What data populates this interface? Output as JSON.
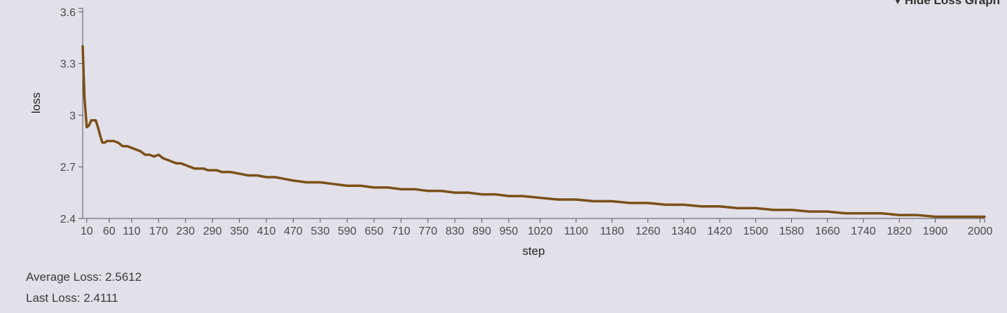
{
  "toggle": {
    "arrow": "▼",
    "label": "Hide Loss Graph"
  },
  "stats": {
    "average_label": "Average Loss: 2.5612",
    "last_label": "Last Loss: 2.4111"
  },
  "colors": {
    "line": "#7a5019",
    "axis": "#555555",
    "background": "#e2e0e9"
  },
  "chart_data": {
    "type": "line",
    "xlabel": "step",
    "ylabel": "loss",
    "xlim": [
      1,
      2010
    ],
    "ylim": [
      2.4,
      3.62
    ],
    "x_ticks": [
      10,
      60,
      110,
      170,
      230,
      290,
      350,
      410,
      470,
      530,
      590,
      650,
      710,
      770,
      830,
      890,
      950,
      1020,
      1100,
      1180,
      1260,
      1340,
      1420,
      1500,
      1580,
      1660,
      1740,
      1820,
      1900,
      2000
    ],
    "y_ticks": [
      2.4,
      2.7,
      3,
      3.3,
      3.6
    ],
    "y_tick_labels": [
      "2.4",
      "2.7",
      "3",
      "3.3",
      "3.6"
    ],
    "grid": false,
    "series": [
      {
        "x": [
          1,
          5,
          10,
          15,
          20,
          25,
          30,
          35,
          40,
          45,
          50,
          55,
          60,
          65,
          70,
          80,
          90,
          100,
          110,
          120,
          130,
          140,
          150,
          160,
          170,
          180,
          190,
          200,
          210,
          220,
          230,
          240,
          250,
          260,
          270,
          280,
          290,
          300,
          310,
          320,
          330,
          350,
          370,
          390,
          410,
          430,
          450,
          470,
          500,
          530,
          560,
          590,
          620,
          650,
          680,
          710,
          740,
          770,
          800,
          830,
          860,
          890,
          920,
          950,
          980,
          1020,
          1060,
          1100,
          1140,
          1180,
          1220,
          1260,
          1300,
          1340,
          1380,
          1420,
          1460,
          1500,
          1540,
          1580,
          1620,
          1660,
          1700,
          1740,
          1780,
          1820,
          1860,
          1900,
          1940,
          1980,
          2010
        ],
        "y": [
          3.4,
          3.1,
          2.93,
          2.94,
          2.97,
          2.97,
          2.97,
          2.93,
          2.88,
          2.84,
          2.84,
          2.85,
          2.85,
          2.85,
          2.85,
          2.84,
          2.82,
          2.82,
          2.81,
          2.8,
          2.79,
          2.77,
          2.77,
          2.76,
          2.77,
          2.75,
          2.74,
          2.73,
          2.72,
          2.72,
          2.71,
          2.7,
          2.69,
          2.69,
          2.69,
          2.68,
          2.68,
          2.68,
          2.67,
          2.67,
          2.67,
          2.66,
          2.65,
          2.65,
          2.64,
          2.64,
          2.63,
          2.62,
          2.61,
          2.61,
          2.6,
          2.59,
          2.59,
          2.58,
          2.58,
          2.57,
          2.57,
          2.56,
          2.56,
          2.55,
          2.55,
          2.54,
          2.54,
          2.53,
          2.53,
          2.52,
          2.51,
          2.51,
          2.5,
          2.5,
          2.49,
          2.49,
          2.48,
          2.48,
          2.47,
          2.47,
          2.46,
          2.46,
          2.45,
          2.45,
          2.44,
          2.44,
          2.43,
          2.43,
          2.43,
          2.42,
          2.42,
          2.41,
          2.41,
          2.41,
          2.41
        ]
      }
    ]
  }
}
